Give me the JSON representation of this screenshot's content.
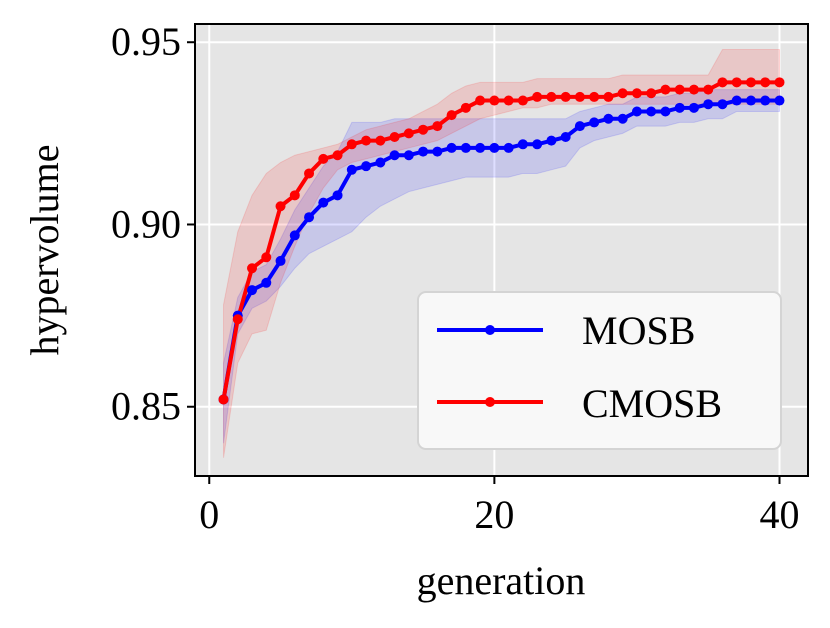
{
  "chart_data": {
    "type": "line",
    "title": "",
    "xlabel": "generation",
    "ylabel": "hypervolume",
    "xlim": [
      -1,
      42
    ],
    "ylim": [
      0.831,
      0.955
    ],
    "xticks": [
      0,
      20,
      40
    ],
    "xtick_labels": [
      "0",
      "20",
      "40"
    ],
    "yticks": [
      0.85,
      0.9,
      0.95
    ],
    "ytick_labels": [
      "0.85",
      "0.90",
      "0.95"
    ],
    "grid": true,
    "legend_position": "lower-right",
    "x": [
      1,
      2,
      3,
      4,
      5,
      6,
      7,
      8,
      9,
      10,
      11,
      12,
      13,
      14,
      15,
      16,
      17,
      18,
      19,
      20,
      21,
      22,
      23,
      24,
      25,
      26,
      27,
      28,
      29,
      30,
      31,
      32,
      33,
      34,
      35,
      36,
      37,
      38,
      39,
      40
    ],
    "series": [
      {
        "name": "MOSB",
        "color": "#0000ff",
        "values": [
          0.852,
          0.875,
          0.882,
          0.884,
          0.89,
          0.897,
          0.902,
          0.906,
          0.908,
          0.915,
          0.916,
          0.917,
          0.919,
          0.919,
          0.92,
          0.92,
          0.921,
          0.921,
          0.921,
          0.921,
          0.921,
          0.922,
          0.922,
          0.923,
          0.924,
          0.927,
          0.928,
          0.929,
          0.929,
          0.931,
          0.931,
          0.931,
          0.932,
          0.932,
          0.933,
          0.933,
          0.934,
          0.934,
          0.934,
          0.934
        ],
        "band_upper": [
          0.862,
          0.88,
          0.887,
          0.889,
          0.896,
          0.904,
          0.91,
          0.916,
          0.92,
          0.928,
          0.928,
          0.928,
          0.929,
          0.929,
          0.929,
          0.929,
          0.929,
          0.929,
          0.929,
          0.929,
          0.929,
          0.929,
          0.929,
          0.929,
          0.929,
          0.931,
          0.932,
          0.933,
          0.933,
          0.935,
          0.935,
          0.935,
          0.936,
          0.936,
          0.937,
          0.937,
          0.937,
          0.937,
          0.937,
          0.937
        ],
        "band_lower": [
          0.84,
          0.87,
          0.877,
          0.879,
          0.883,
          0.888,
          0.892,
          0.894,
          0.896,
          0.898,
          0.902,
          0.905,
          0.907,
          0.909,
          0.91,
          0.911,
          0.912,
          0.913,
          0.913,
          0.913,
          0.913,
          0.914,
          0.914,
          0.915,
          0.916,
          0.921,
          0.923,
          0.924,
          0.925,
          0.927,
          0.927,
          0.927,
          0.928,
          0.928,
          0.929,
          0.929,
          0.931,
          0.931,
          0.931,
          0.931
        ],
        "fill_color": "rgba(0,0,255,0.13)"
      },
      {
        "name": "CMOSB",
        "color": "#ff0000",
        "values": [
          0.852,
          0.874,
          0.888,
          0.891,
          0.905,
          0.908,
          0.914,
          0.918,
          0.919,
          0.922,
          0.923,
          0.923,
          0.924,
          0.925,
          0.926,
          0.927,
          0.93,
          0.932,
          0.934,
          0.934,
          0.934,
          0.934,
          0.935,
          0.935,
          0.935,
          0.935,
          0.935,
          0.935,
          0.936,
          0.936,
          0.936,
          0.937,
          0.937,
          0.937,
          0.937,
          0.939,
          0.939,
          0.939,
          0.939,
          0.939
        ],
        "band_upper": [
          0.878,
          0.898,
          0.908,
          0.914,
          0.917,
          0.919,
          0.92,
          0.921,
          0.922,
          0.924,
          0.926,
          0.927,
          0.928,
          0.929,
          0.931,
          0.933,
          0.936,
          0.938,
          0.939,
          0.939,
          0.939,
          0.939,
          0.94,
          0.94,
          0.94,
          0.94,
          0.94,
          0.94,
          0.941,
          0.941,
          0.941,
          0.941,
          0.941,
          0.941,
          0.941,
          0.948,
          0.948,
          0.948,
          0.948,
          0.948
        ],
        "band_lower": [
          0.836,
          0.862,
          0.87,
          0.871,
          0.884,
          0.894,
          0.903,
          0.91,
          0.915,
          0.917,
          0.918,
          0.919,
          0.92,
          0.921,
          0.922,
          0.923,
          0.925,
          0.927,
          0.929,
          0.93,
          0.931,
          0.932,
          0.932,
          0.933,
          0.933,
          0.933,
          0.933,
          0.933,
          0.933,
          0.933,
          0.933,
          0.933,
          0.933,
          0.933,
          0.933,
          0.933,
          0.933,
          0.933,
          0.933,
          0.933
        ],
        "fill_color": "rgba(255,0,0,0.13)"
      }
    ]
  }
}
